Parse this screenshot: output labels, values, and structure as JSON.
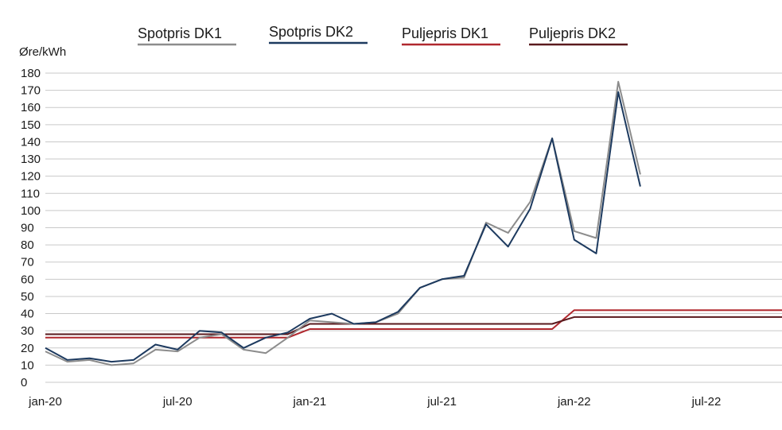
{
  "chart_data": {
    "type": "line",
    "ylabel": "Øre/kWh",
    "ylim": [
      0,
      180
    ],
    "y_ticks": [
      0,
      10,
      20,
      30,
      40,
      50,
      60,
      70,
      80,
      90,
      100,
      110,
      120,
      130,
      140,
      150,
      160,
      170,
      180
    ],
    "x_tick_labels": [
      "jan-20",
      "jul-20",
      "jan-21",
      "jul-21",
      "jan-22",
      "jul-22"
    ],
    "grid": true,
    "legend_position": "top",
    "x_range_months": [
      "2020-01",
      "2022-12"
    ],
    "series": [
      {
        "name": "Spotpris DK1",
        "color": "#8c8c8c",
        "x": [
          "2020-01",
          "2020-02",
          "2020-03",
          "2020-04",
          "2020-05",
          "2020-06",
          "2020-07",
          "2020-08",
          "2020-09",
          "2020-10",
          "2020-11",
          "2020-12",
          "2021-01",
          "2021-02",
          "2021-03",
          "2021-04",
          "2021-05",
          "2021-06",
          "2021-07",
          "2021-08",
          "2021-09",
          "2021-10",
          "2021-11",
          "2021-12",
          "2022-01",
          "2022-02",
          "2022-03",
          "2022-04"
        ],
        "values": [
          18,
          12,
          13,
          10,
          11,
          19,
          18,
          26,
          28,
          19,
          17,
          26,
          36,
          35,
          34,
          35,
          40,
          55,
          60,
          61,
          93,
          87,
          105,
          142,
          88,
          84,
          175,
          121
        ]
      },
      {
        "name": "Spotpris DK2",
        "color": "#1d3a5f",
        "x": [
          "2020-01",
          "2020-02",
          "2020-03",
          "2020-04",
          "2020-05",
          "2020-06",
          "2020-07",
          "2020-08",
          "2020-09",
          "2020-10",
          "2020-11",
          "2020-12",
          "2021-01",
          "2021-02",
          "2021-03",
          "2021-04",
          "2021-05",
          "2021-06",
          "2021-07",
          "2021-08",
          "2021-09",
          "2021-10",
          "2021-11",
          "2021-12",
          "2022-01",
          "2022-02",
          "2022-03",
          "2022-04"
        ],
        "values": [
          20,
          13,
          14,
          12,
          13,
          22,
          19,
          30,
          29,
          20,
          26,
          29,
          37,
          40,
          34,
          35,
          41,
          55,
          60,
          62,
          92,
          79,
          101,
          142,
          83,
          75,
          169,
          114
        ]
      },
      {
        "name": "Puljepris DK1",
        "color": "#b0282e",
        "x": [
          "2020-01",
          "2020-12",
          "2021-01",
          "2021-12",
          "2022-01",
          "2022-12"
        ],
        "values": [
          26,
          26,
          31,
          31,
          42,
          42
        ]
      },
      {
        "name": "Puljepris DK2",
        "color": "#5a1a1e",
        "x": [
          "2020-01",
          "2020-12",
          "2021-01",
          "2021-12",
          "2022-01",
          "2022-12"
        ],
        "values": [
          28,
          28,
          34,
          34,
          38,
          38
        ]
      }
    ]
  }
}
